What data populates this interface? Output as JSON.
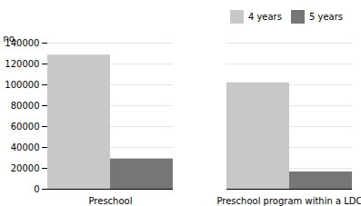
{
  "chart_data": {
    "type": "bar",
    "categories": [
      "Preschool",
      "Preschool program within a LDC"
    ],
    "series": [
      {
        "name": "4 years",
        "color": "#c8c8c8",
        "values": [
          128500,
          102000
        ]
      },
      {
        "name": "5 years",
        "color": "#767676",
        "values": [
          29000,
          16500
        ]
      }
    ],
    "ylabel": "no.",
    "ylim": [
      0,
      140000
    ],
    "yticks": [
      0,
      20000,
      40000,
      60000,
      80000,
      100000,
      120000,
      140000
    ],
    "grid": true,
    "legend": "upper right"
  }
}
